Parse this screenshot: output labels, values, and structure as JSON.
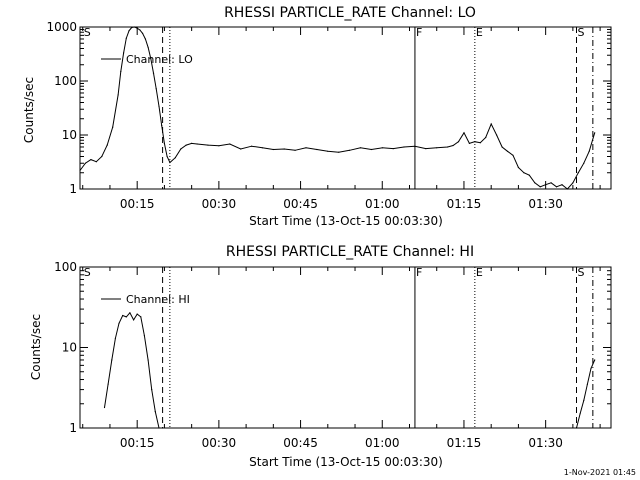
{
  "chart_data": [
    {
      "type": "line",
      "title": "RHESSI PARTICLE_RATE Channel: LO",
      "xlabel": "Start Time (13-Oct-15 00:03:30)",
      "ylabel": "Counts/sec",
      "y_scale": "log",
      "ylim": [
        1,
        1000
      ],
      "xlim": [
        "00:04:30",
        "01:42:00"
      ],
      "x_ticks": [
        "00:15",
        "00:30",
        "00:45",
        "01:00",
        "01:15",
        "01:30"
      ],
      "y_ticks": [
        "1",
        "10",
        "100",
        "1000"
      ],
      "grid": false,
      "legend_position": "upper-left",
      "series": [
        {
          "name": "Channel: LO",
          "x": [
            "00:04:30",
            "00:05:30",
            "00:06:30",
            "00:07:30",
            "00:08:30",
            "00:09:30",
            "00:10:30",
            "00:11:30",
            "00:12:00",
            "00:12:30",
            "00:13:00",
            "00:13:30",
            "00:14:00",
            "00:14:30",
            "00:15:00",
            "00:15:30",
            "00:16:00",
            "00:16:30",
            "00:17:00",
            "00:17:30",
            "00:18:00",
            "00:18:30",
            "00:19:00",
            "00:19:30",
            "00:20:00",
            "00:20:30",
            "00:21:00",
            "00:22:00",
            "00:23:00",
            "00:24:00",
            "00:25:00",
            "00:26:00",
            "00:28:00",
            "00:30:00",
            "00:32:00",
            "00:34:00",
            "00:36:00",
            "00:38:00",
            "00:40:00",
            "00:42:00",
            "00:44:00",
            "00:46:00",
            "00:48:00",
            "00:50:00",
            "00:52:00",
            "00:54:00",
            "00:56:00",
            "00:58:00",
            "01:00:00",
            "01:02:00",
            "01:04:00",
            "01:06:00",
            "01:08:00",
            "01:10:00",
            "01:12:00",
            "01:13:00",
            "01:14:00",
            "01:15:00",
            "01:16:00",
            "01:17:00",
            "01:18:00",
            "01:19:00",
            "01:20:00",
            "01:21:00",
            "01:22:00",
            "01:23:00",
            "01:24:00",
            "01:25:00",
            "01:26:00",
            "01:27:00",
            "01:28:00",
            "01:29:00",
            "01:30:00",
            "01:31:00",
            "01:32:00",
            "01:33:00",
            "01:34:00",
            "01:35:00",
            "01:36:00",
            "01:37:00",
            "01:38:00",
            "01:39:00"
          ],
          "values": [
            2.2,
            3.0,
            3.5,
            3.2,
            4.0,
            6.5,
            14,
            55,
            150,
            330,
            620,
            850,
            980,
            1000,
            950,
            880,
            760,
            600,
            420,
            260,
            140,
            72,
            34,
            15,
            7,
            4,
            3.1,
            3.8,
            5.5,
            6.5,
            7.0,
            6.8,
            6.5,
            6.3,
            6.8,
            5.5,
            6.2,
            5.8,
            5.4,
            5.5,
            5.2,
            5.8,
            5.4,
            5.0,
            4.8,
            5.2,
            5.8,
            5.4,
            5.8,
            5.6,
            6.0,
            6.2,
            5.6,
            5.8,
            6.0,
            6.4,
            7.5,
            11,
            7.0,
            7.5,
            7.2,
            9.0,
            16,
            10,
            6.0,
            5.0,
            4.2,
            2.5,
            2.0,
            1.8,
            1.3,
            1.1,
            1.2,
            1.3,
            1.1,
            1.2,
            1.0,
            1.3,
            2.0,
            3.0,
            5.0,
            11
          ]
        }
      ],
      "markers": [
        {
          "label": "S",
          "x": "00:05:00",
          "style": "none"
        },
        {
          "label": "",
          "x": "00:19:40",
          "style": "dashed"
        },
        {
          "label": "",
          "x": "00:21:00",
          "style": "dotted"
        },
        {
          "label": "F",
          "x": "01:06:00",
          "style": "solid"
        },
        {
          "label": "E",
          "x": "01:17:00",
          "style": "dotted"
        },
        {
          "label": "S",
          "x": "01:35:40",
          "style": "dashed"
        },
        {
          "label": "",
          "x": "01:38:40",
          "style": "dashdot"
        }
      ]
    },
    {
      "type": "line",
      "title": "RHESSI PARTICLE_RATE Channel: HI",
      "xlabel": "Start Time (13-Oct-15 00:03:30)",
      "ylabel": "Counts/sec",
      "y_scale": "log",
      "ylim": [
        1,
        100
      ],
      "xlim": [
        "00:04:30",
        "01:42:00"
      ],
      "x_ticks": [
        "00:15",
        "00:30",
        "00:45",
        "01:00",
        "01:15",
        "01:30"
      ],
      "y_ticks": [
        "1",
        "10",
        "100"
      ],
      "grid": false,
      "legend_position": "upper-left",
      "series": [
        {
          "name": "Channel: HI",
          "x": [
            "00:09:00",
            "00:09:40",
            "00:10:20",
            "00:11:00",
            "00:11:40",
            "00:12:20",
            "00:13:00",
            "00:13:40",
            "00:14:20",
            "00:15:00",
            "00:15:40",
            "00:16:20",
            "00:17:00",
            "00:17:40",
            "00:18:20",
            "00:19:00",
            "00:19:40",
            "01:35:40",
            "01:36:20",
            "01:37:00",
            "01:37:40",
            "01:38:20",
            "01:39:00"
          ],
          "values": [
            1.8,
            3.5,
            7,
            13,
            20,
            25,
            24,
            27,
            22,
            26,
            24,
            14,
            7,
            3,
            1.6,
            1.0,
            1.0,
            1.0,
            1.5,
            2.2,
            3.5,
            5.5,
            7.0
          ]
        }
      ],
      "markers": [
        {
          "label": "S",
          "x": "00:05:00",
          "style": "none"
        },
        {
          "label": "",
          "x": "00:19:40",
          "style": "dashed"
        },
        {
          "label": "",
          "x": "00:21:00",
          "style": "dotted"
        },
        {
          "label": "F",
          "x": "01:06:00",
          "style": "solid"
        },
        {
          "label": "E",
          "x": "01:17:00",
          "style": "dotted"
        },
        {
          "label": "S",
          "x": "01:35:40",
          "style": "dashed"
        },
        {
          "label": "",
          "x": "01:38:40",
          "style": "dashdot"
        }
      ]
    }
  ],
  "footer": {
    "timestamp": "1-Nov-2021 01:45"
  }
}
